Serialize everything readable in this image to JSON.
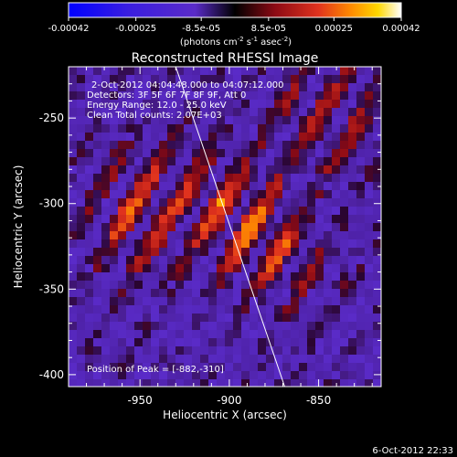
{
  "colorbar": {
    "tick_labels": [
      "-0.00042",
      "-0.00025",
      "-8.5e-05",
      "8.5e-05",
      "0.00025",
      "0.00042"
    ],
    "tick_values": [
      -0.00042,
      -0.00025,
      -8.5e-05,
      8.5e-05,
      0.00025,
      0.00042
    ],
    "range": [
      -0.00042,
      0.00042
    ],
    "unit_main": "(photons cm",
    "unit_exp1": "-2",
    "unit_s": " s",
    "unit_exp2": "-1",
    "unit_asec": " asec",
    "unit_exp3": "-2",
    "unit_close": ")",
    "colors": [
      "#0000ff",
      "#5a2bc8",
      "#000000",
      "#8c0a14",
      "#e0321e",
      "#ff8c00",
      "#ffd700",
      "#ffffff"
    ]
  },
  "plot": {
    "title": "Reconstructed RHESSI Image",
    "xlabel": "Heliocentric X (arcsec)",
    "ylabel": "Heliocentric Y (arcsec)",
    "x_ticks": [
      "-950",
      "-900",
      "-850"
    ],
    "x_tick_values": [
      -950,
      -900,
      -850
    ],
    "y_ticks": [
      "-250",
      "-300",
      "-350",
      "-400"
    ],
    "y_tick_values": [
      -250,
      -300,
      -350,
      -400
    ],
    "xlim": [
      -990,
      -815
    ],
    "ylim": [
      -407,
      -220
    ],
    "limb_points": [
      [
        -930,
        -220
      ],
      [
        -869,
        -407
      ]
    ],
    "info_lines": [
      "2-Oct-2012 04:04:48.000 to 04:07:12.000",
      "Detectors: 3F 5F 6F 7F 8F 9F, Att 0",
      "Energy Range: 12.0 - 25.0 keV",
      "Clean    Total counts: 2.07E+03"
    ],
    "peak_label": "Position of Peak = [-882,-310]",
    "peak": [
      -882,
      -310
    ]
  },
  "footer": {
    "timestamp": "6-Oct-2012 22:33"
  }
}
